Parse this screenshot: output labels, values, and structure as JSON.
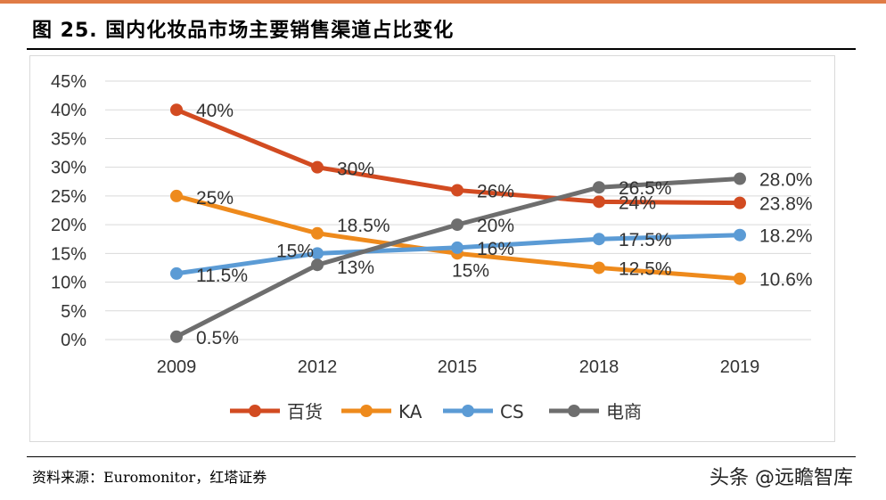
{
  "header": {
    "title": "图 25. 国内化妆品市场主要销售渠道占比变化"
  },
  "footer": {
    "source": "资料来源：Euromonitor，红塔证券",
    "watermark": "头条 @远瞻智库"
  },
  "colors": {
    "top_rule": "#E07B46",
    "gridline": "#d9d9d9"
  },
  "chart_data": {
    "type": "line",
    "title": "",
    "xlabel": "",
    "ylabel": "",
    "x": [
      "2009",
      "2012",
      "2015",
      "2018",
      "2019"
    ],
    "ylim": [
      0,
      45
    ],
    "ytick_labels": [
      "0%",
      "5%",
      "10%",
      "15%",
      "20%",
      "25%",
      "30%",
      "35%",
      "40%",
      "45%"
    ],
    "grid": true,
    "legend_position": "bottom",
    "series": [
      {
        "name": "百货",
        "color": "#D24B21",
        "values": [
          40,
          30,
          26,
          24,
          23.8
        ],
        "labels": [
          "40%",
          "30%",
          "26%",
          "24%",
          "23.8%"
        ]
      },
      {
        "name": "KA",
        "color": "#EE8A1C",
        "values": [
          25,
          18.5,
          15,
          12.5,
          10.6
        ],
        "labels": [
          "25%",
          "18.5%",
          "15%",
          "12.5%",
          "10.6%"
        ]
      },
      {
        "name": "CS",
        "color": "#5B9BD5",
        "values": [
          11.5,
          15,
          16,
          17.5,
          18.2
        ],
        "labels": [
          "11.5%",
          "15%",
          "16%",
          "17.5%",
          "18.2%"
        ]
      },
      {
        "name": "电商",
        "color": "#6E6E6E",
        "values": [
          0.5,
          13,
          20,
          26.5,
          28.0
        ],
        "labels": [
          "0.5%",
          "13%",
          "20%",
          "26.5%",
          "28.0%"
        ]
      }
    ]
  }
}
